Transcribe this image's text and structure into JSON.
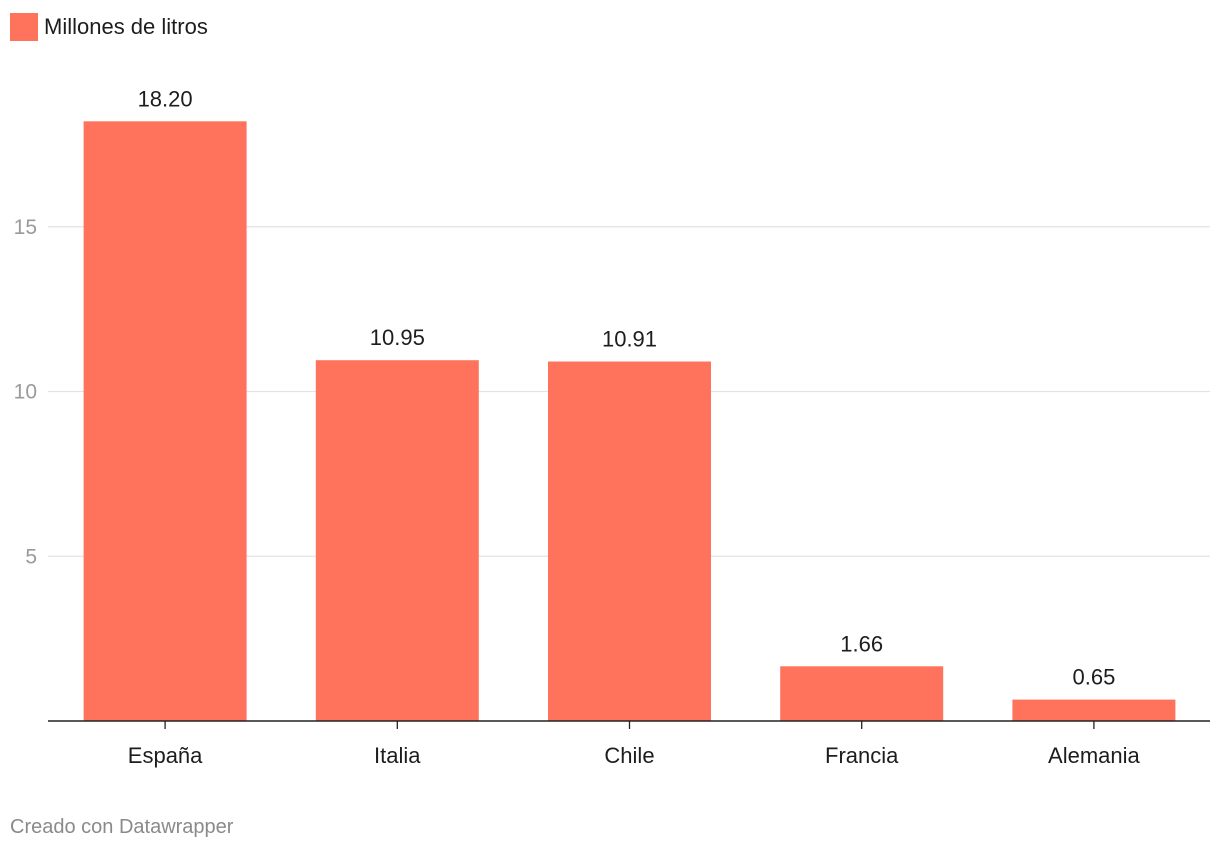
{
  "chart_data": {
    "type": "bar",
    "categories": [
      "España",
      "Italia",
      "Chile",
      "Francia",
      "Alemania"
    ],
    "series": [
      {
        "name": "Millones de litros",
        "values": [
          18.2,
          10.95,
          10.91,
          1.66,
          0.65
        ],
        "value_labels": [
          "18.20",
          "10.95",
          "10.91",
          "1.66",
          "0.65"
        ],
        "color": "#ff735c"
      }
    ],
    "yticks": [
      5,
      10,
      15
    ],
    "ylim": [
      0,
      20
    ],
    "grid": true,
    "legend": "top-left",
    "title": "",
    "xlabel": "",
    "ylabel": ""
  },
  "legend": {
    "label": "Millones de litros",
    "color": "#ff735c"
  },
  "footer": {
    "credit": "Creado con Datawrapper"
  }
}
